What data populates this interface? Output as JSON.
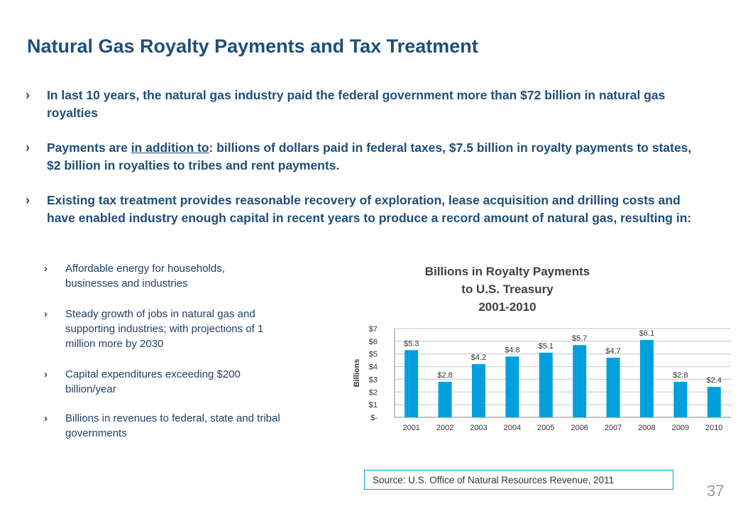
{
  "title": "Natural Gas Royalty Payments and Tax Treatment",
  "bullets": [
    {
      "mark": "›",
      "text": "In last 10 years, the natural gas industry paid the federal government  more than $72 billion in natural gas royalties"
    },
    {
      "mark": "›",
      "text_before": "Payments are ",
      "text_underlined": "in addition to",
      "text_after": ": billions of dollars paid in federal taxes, $7.5 billion in royalty payments to states, $2 billion in royalties to tribes and rent payments."
    },
    {
      "mark": "›",
      "text": "Existing tax treatment provides reasonable recovery of exploration, lease acquisition and drilling costs and have enabled industry enough capital in recent years to produce a record amount of natural gas, resulting in:"
    }
  ],
  "sub_bullets": [
    {
      "mark": "›",
      "text": "Affordable energy for households, businesses and industries"
    },
    {
      "mark": "›",
      "text": "Steady growth of jobs in natural gas and supporting industries; with projections of 1 million more by 2030"
    },
    {
      "mark": "›",
      "text": "Capital expenditures exceeding $200 billion/year"
    },
    {
      "mark": "›",
      "text": "Billions in revenues to federal, state and tribal governments"
    }
  ],
  "chart_title_lines": [
    "Billions in Royalty Payments",
    "to U.S. Treasury",
    "2001-2010"
  ],
  "chart_data": {
    "type": "bar",
    "title": "Billions in Royalty Payments to U.S. Treasury 2001-2010",
    "xlabel": "",
    "ylabel": "Billions",
    "categories": [
      "2001",
      "2002",
      "2003",
      "2004",
      "2005",
      "2006",
      "2007",
      "2008",
      "2009",
      "2010"
    ],
    "values": [
      5.3,
      2.8,
      4.2,
      4.8,
      5.1,
      5.7,
      4.7,
      6.1,
      2.8,
      2.4
    ],
    "data_labels": [
      "$5.3",
      "$2.8",
      "$4.2",
      "$4.8",
      "$5.1",
      "$5.7",
      "$4.7",
      "$6.1",
      "$2.8",
      "$2.4"
    ],
    "y_ticks": [
      0,
      1,
      2,
      3,
      4,
      5,
      6,
      7
    ],
    "y_tick_labels": [
      "$-",
      "$1",
      "$2",
      "$3",
      "$4",
      "$5",
      "$6",
      "$7"
    ],
    "ylim": [
      0,
      7
    ],
    "grid": true,
    "bar_color": "#00a0dc"
  },
  "source": "Source: U.S. Office of Natural Resources Revenue, 2011",
  "page_number": "37",
  "colors": {
    "title": "#1f4e79",
    "accent": "#00a0dc"
  }
}
